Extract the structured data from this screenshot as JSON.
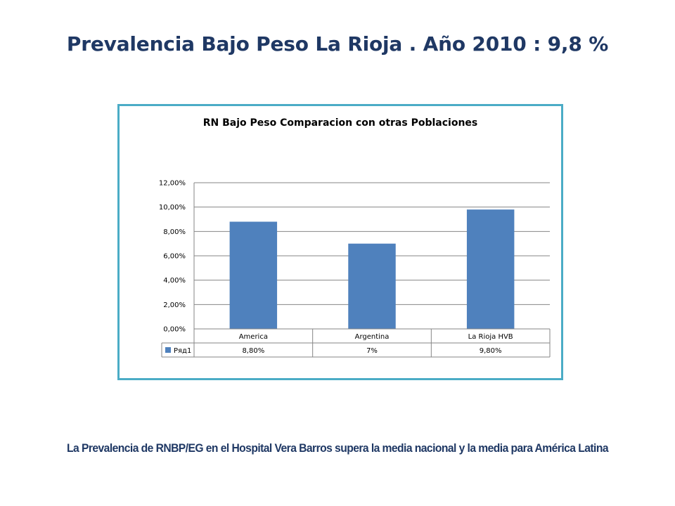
{
  "slide": {
    "title": "Prevalencia Bajo Peso La Rioja . Año 2010 : 9,8 %",
    "footnote": "La Prevalencia de RNBP/EG  en el Hospital Vera Barros supera la media nacional y la media para América Latina"
  },
  "colors": {
    "title": "#1F3864",
    "frame_border": "#4BACC6",
    "bar": "#4F81BD",
    "gridline": "#868686"
  },
  "chart_data": {
    "type": "bar",
    "title": "RN Bajo Peso Comparacion con otras Poblaciones",
    "categories": [
      "America",
      "Argentina",
      "La Rioja HVB"
    ],
    "series": [
      {
        "name": "Ряд1",
        "values": [
          8.8,
          7.0,
          9.8
        ],
        "labels": [
          "8,80%",
          "7%",
          "9,80%"
        ]
      }
    ],
    "yticks": [
      "0,00%",
      "2,00%",
      "4,00%",
      "6,00%",
      "8,00%",
      "10,00%",
      "12,00%"
    ],
    "ylim": [
      0,
      12
    ],
    "grid": true,
    "legend": "data-table",
    "data_table": true
  }
}
